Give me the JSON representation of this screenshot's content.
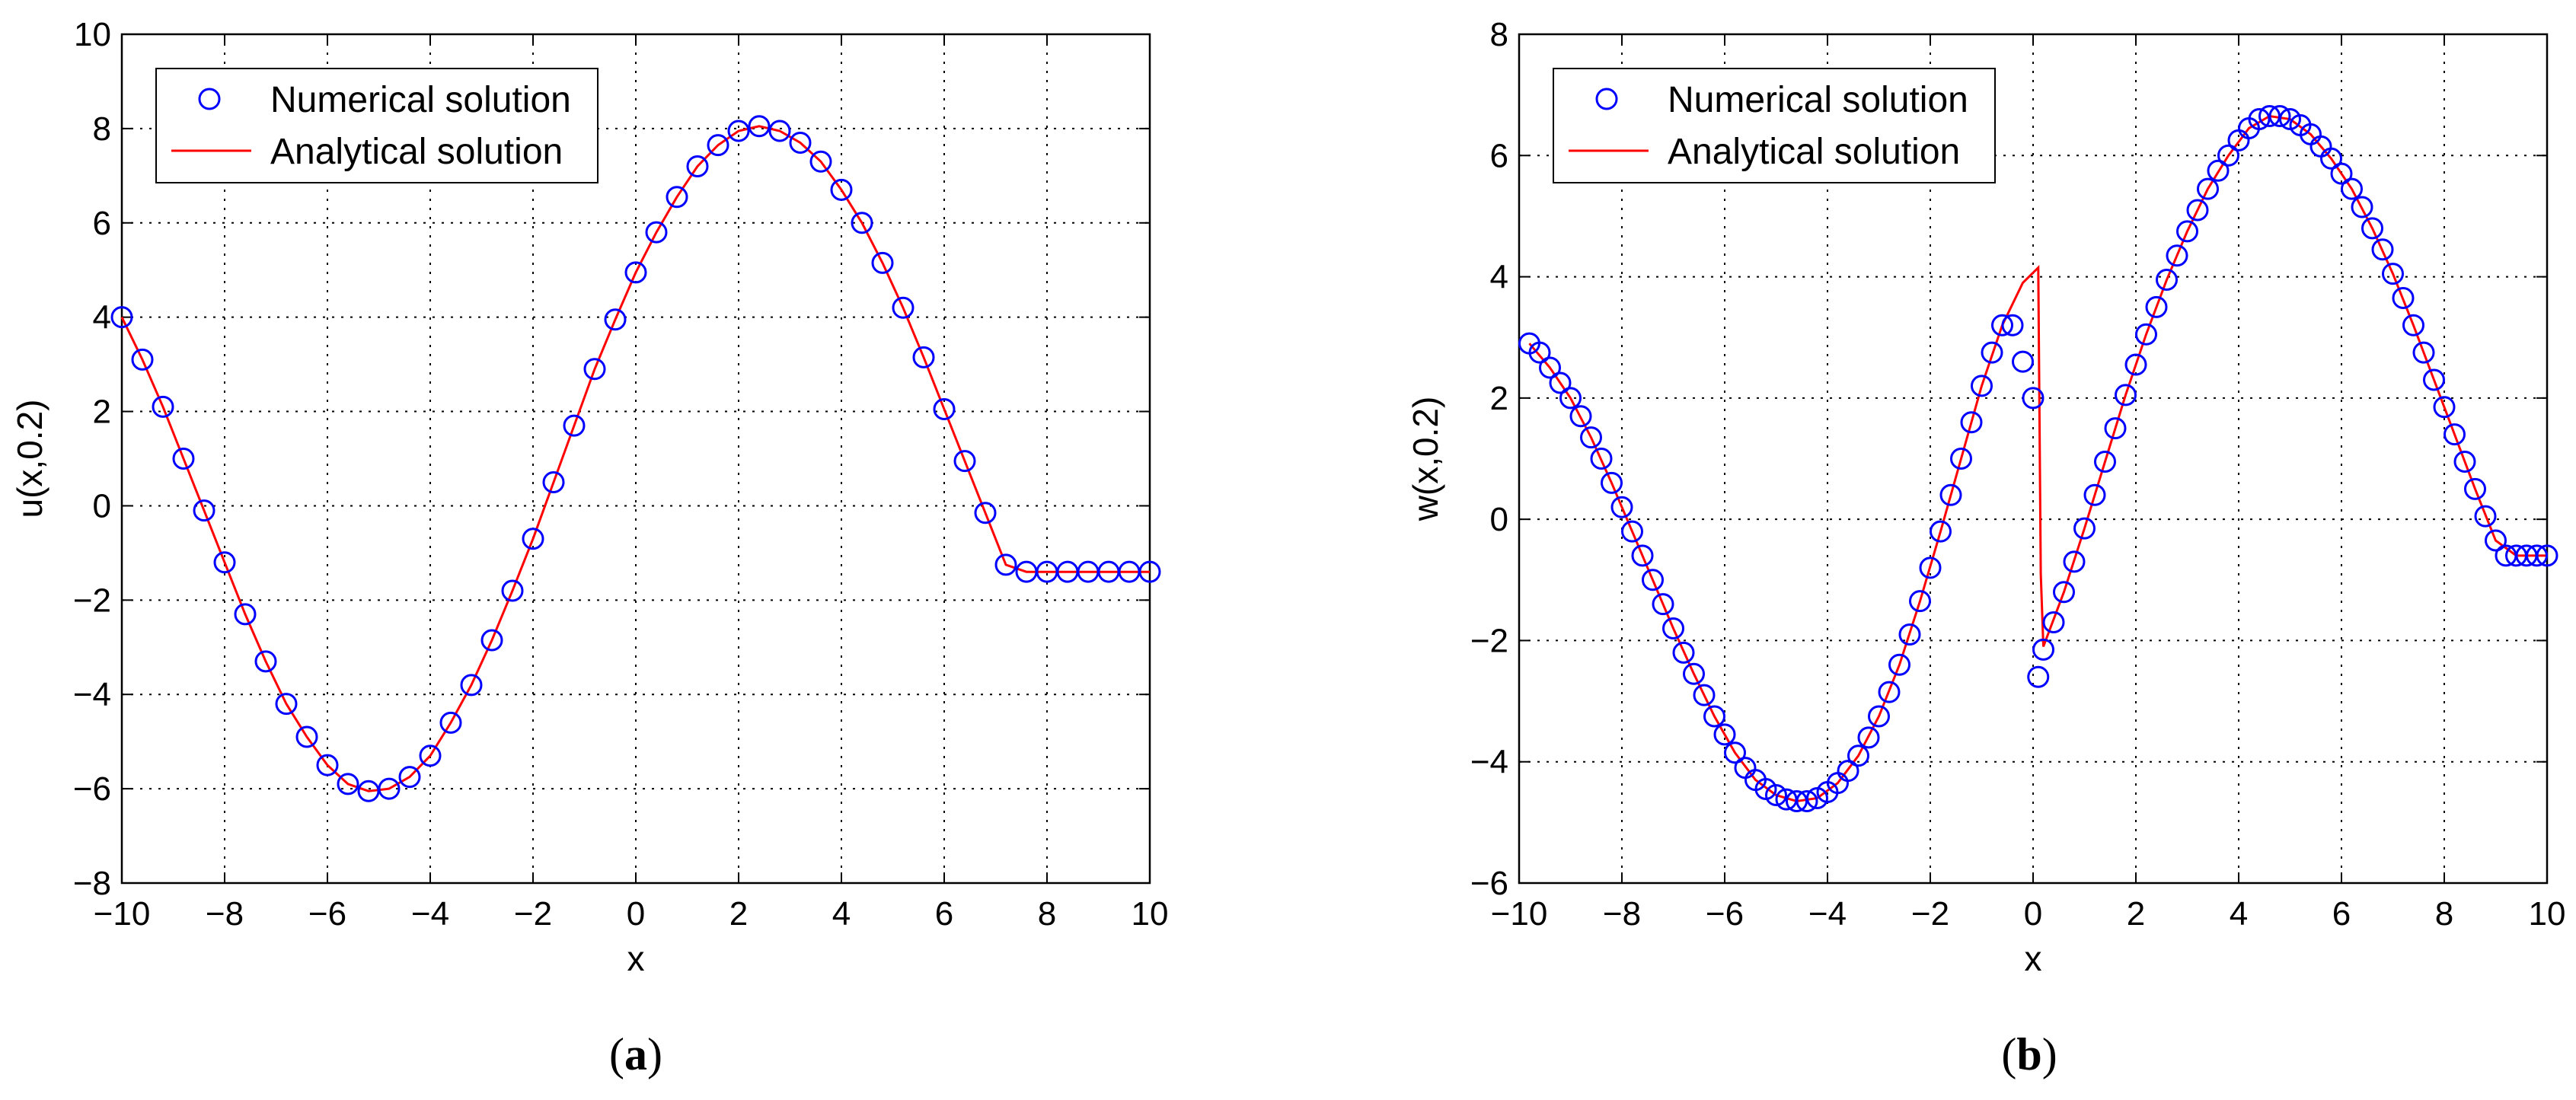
{
  "chart_data": [
    {
      "type": "line",
      "caption": "a",
      "xlabel": "x",
      "ylabel": "u(x,0.2)",
      "xlim": [
        -10,
        10
      ],
      "ylim": [
        -8,
        10
      ],
      "xticks": [
        -10,
        -8,
        -6,
        -4,
        -2,
        0,
        2,
        4,
        6,
        8,
        10
      ],
      "yticks": [
        -8,
        -6,
        -4,
        -2,
        0,
        2,
        4,
        6,
        8,
        10
      ],
      "grid": true,
      "legend_position": "top-left",
      "colors": {
        "numerical": "#0000ff",
        "analytical": "#ff0000"
      },
      "series": [
        {
          "name": "Numerical solution",
          "marker": "circle",
          "x": [
            -10.0,
            -9.6,
            -9.2,
            -8.8,
            -8.4,
            -8.0,
            -7.6,
            -7.2,
            -6.8,
            -6.4,
            -6.0,
            -5.6,
            -5.2,
            -4.8,
            -4.4,
            -4.0,
            -3.6,
            -3.2,
            -2.8,
            -2.4,
            -2.0,
            -1.6,
            -1.2,
            -0.8,
            -0.4,
            0.0,
            0.4,
            0.8,
            1.2,
            1.6,
            2.0,
            2.4,
            2.8,
            3.2,
            3.6,
            4.0,
            4.4,
            4.8,
            5.2,
            5.6,
            6.0,
            6.4,
            6.8,
            7.2,
            7.6,
            8.0,
            8.4,
            8.8,
            9.2,
            9.6,
            10.0
          ],
          "y": [
            4.0,
            3.1,
            2.1,
            1.0,
            -0.1,
            -1.2,
            -2.3,
            -3.3,
            -4.2,
            -4.9,
            -5.5,
            -5.9,
            -6.05,
            -6.0,
            -5.75,
            -5.3,
            -4.6,
            -3.8,
            -2.85,
            -1.8,
            -0.7,
            0.5,
            1.7,
            2.9,
            3.95,
            4.95,
            5.8,
            6.55,
            7.2,
            7.65,
            7.95,
            8.05,
            7.95,
            7.7,
            7.3,
            6.7,
            6.0,
            5.15,
            4.2,
            3.15,
            2.05,
            0.95,
            -0.15,
            -1.25,
            -1.4,
            -1.4,
            -1.4,
            -1.4,
            -1.4,
            -1.4,
            -1.4
          ]
        },
        {
          "name": "Analytical solution",
          "marker": "line",
          "x": [
            -10.0,
            -9.6,
            -9.2,
            -8.8,
            -8.4,
            -8.0,
            -7.6,
            -7.2,
            -6.8,
            -6.4,
            -6.0,
            -5.6,
            -5.2,
            -4.8,
            -4.4,
            -4.0,
            -3.6,
            -3.2,
            -2.8,
            -2.4,
            -2.0,
            -1.6,
            -1.2,
            -0.8,
            -0.4,
            0.0,
            0.4,
            0.8,
            1.2,
            1.6,
            2.0,
            2.4,
            2.8,
            3.2,
            3.6,
            4.0,
            4.4,
            4.8,
            5.2,
            5.6,
            6.0,
            6.4,
            6.8,
            7.2,
            7.6,
            8.0,
            8.4,
            8.8,
            9.2,
            9.6,
            10.0
          ],
          "y": [
            4.0,
            3.1,
            2.1,
            1.0,
            -0.1,
            -1.2,
            -2.3,
            -3.3,
            -4.2,
            -4.9,
            -5.5,
            -5.9,
            -6.05,
            -6.0,
            -5.75,
            -5.3,
            -4.6,
            -3.8,
            -2.85,
            -1.8,
            -0.7,
            0.5,
            1.7,
            2.9,
            3.95,
            4.95,
            5.8,
            6.55,
            7.2,
            7.65,
            7.95,
            8.05,
            7.95,
            7.7,
            7.3,
            6.7,
            6.0,
            5.15,
            4.2,
            3.15,
            2.05,
            0.95,
            -0.15,
            -1.25,
            -1.4,
            -1.4,
            -1.4,
            -1.4,
            -1.4,
            -1.4,
            -1.4
          ]
        }
      ]
    },
    {
      "type": "line",
      "caption": "b",
      "xlabel": "x",
      "ylabel": "w(x,0.2)",
      "xlim": [
        -10,
        10
      ],
      "ylim": [
        -6,
        8
      ],
      "xticks": [
        -10,
        -8,
        -6,
        -4,
        -2,
        0,
        2,
        4,
        6,
        8,
        10
      ],
      "yticks": [
        -6,
        -4,
        -2,
        0,
        2,
        4,
        6,
        8
      ],
      "grid": true,
      "legend_position": "top-left",
      "colors": {
        "numerical": "#0000ff",
        "analytical": "#ff0000"
      },
      "series": [
        {
          "name": "Numerical solution",
          "marker": "circle",
          "x": [
            -9.8,
            -9.6,
            -9.4,
            -9.2,
            -9.0,
            -8.8,
            -8.6,
            -8.4,
            -8.2,
            -8.0,
            -7.8,
            -7.6,
            -7.4,
            -7.2,
            -7.0,
            -6.8,
            -6.6,
            -6.4,
            -6.2,
            -6.0,
            -5.8,
            -5.6,
            -5.4,
            -5.2,
            -5.0,
            -4.8,
            -4.6,
            -4.4,
            -4.2,
            -4.0,
            -3.8,
            -3.6,
            -3.4,
            -3.2,
            -3.0,
            -2.8,
            -2.6,
            -2.4,
            -2.2,
            -2.0,
            -1.8,
            -1.6,
            -1.4,
            -1.2,
            -1.0,
            -0.8,
            -0.6,
            -0.4,
            -0.2,
            0.0,
            0.1,
            0.2,
            0.4,
            0.6,
            0.8,
            1.0,
            1.2,
            1.4,
            1.6,
            1.8,
            2.0,
            2.2,
            2.4,
            2.6,
            2.8,
            3.0,
            3.2,
            3.4,
            3.6,
            3.8,
            4.0,
            4.2,
            4.4,
            4.6,
            4.8,
            5.0,
            5.2,
            5.4,
            5.6,
            5.8,
            6.0,
            6.2,
            6.4,
            6.6,
            6.8,
            7.0,
            7.2,
            7.4,
            7.6,
            7.8,
            8.0,
            8.2,
            8.4,
            8.6,
            8.8,
            9.0,
            9.2,
            9.4,
            9.6,
            9.8,
            10.0
          ],
          "y": [
            2.9,
            2.75,
            2.5,
            2.25,
            2.0,
            1.7,
            1.35,
            1.0,
            0.6,
            0.2,
            -0.2,
            -0.6,
            -1.0,
            -1.4,
            -1.8,
            -2.2,
            -2.55,
            -2.9,
            -3.25,
            -3.55,
            -3.85,
            -4.1,
            -4.3,
            -4.45,
            -4.55,
            -4.62,
            -4.65,
            -4.65,
            -4.6,
            -4.5,
            -4.35,
            -4.15,
            -3.9,
            -3.6,
            -3.25,
            -2.85,
            -2.4,
            -1.9,
            -1.35,
            -0.8,
            -0.2,
            0.4,
            1.0,
            1.6,
            2.2,
            2.75,
            3.2,
            3.2,
            2.6,
            2.0,
            -2.6,
            -2.15,
            -1.7,
            -1.2,
            -0.7,
            -0.15,
            0.4,
            0.95,
            1.5,
            2.05,
            2.55,
            3.05,
            3.5,
            3.95,
            4.35,
            4.75,
            5.1,
            5.45,
            5.75,
            6.0,
            6.25,
            6.45,
            6.6,
            6.65,
            6.65,
            6.6,
            6.5,
            6.35,
            6.15,
            5.95,
            5.7,
            5.45,
            5.15,
            4.8,
            4.45,
            4.05,
            3.65,
            3.2,
            2.75,
            2.3,
            1.85,
            1.4,
            0.95,
            0.5,
            0.05,
            -0.35,
            -0.6,
            -0.6,
            -0.6,
            -0.6,
            -0.6
          ]
        },
        {
          "name": "Analytical solution",
          "marker": "line",
          "x": [
            -9.8,
            -9.4,
            -9.0,
            -8.6,
            -8.2,
            -7.8,
            -7.4,
            -7.0,
            -6.6,
            -6.2,
            -5.8,
            -5.4,
            -5.0,
            -4.6,
            -4.2,
            -3.8,
            -3.4,
            -3.0,
            -2.6,
            -2.2,
            -1.8,
            -1.4,
            -1.0,
            -0.6,
            -0.2,
            0.1,
            0.15,
            0.2,
            0.6,
            1.0,
            1.4,
            1.8,
            2.2,
            2.6,
            3.0,
            3.4,
            3.8,
            4.2,
            4.6,
            5.0,
            5.4,
            5.8,
            6.2,
            6.6,
            7.0,
            7.4,
            7.8,
            8.2,
            8.6,
            9.0,
            9.4,
            9.8,
            10.0
          ],
          "y": [
            2.9,
            2.5,
            2.0,
            1.35,
            0.6,
            -0.2,
            -1.0,
            -1.8,
            -2.55,
            -3.25,
            -3.85,
            -4.3,
            -4.55,
            -4.65,
            -4.6,
            -4.35,
            -3.9,
            -3.25,
            -2.4,
            -1.35,
            -0.2,
            1.0,
            2.2,
            3.2,
            3.9,
            4.15,
            -0.9,
            -2.1,
            -1.2,
            -0.15,
            0.95,
            2.05,
            3.05,
            3.95,
            4.75,
            5.45,
            6.0,
            6.45,
            6.65,
            6.6,
            6.35,
            5.95,
            5.45,
            4.8,
            4.05,
            3.2,
            2.3,
            1.4,
            0.5,
            -0.35,
            -0.6,
            -0.6,
            -0.6
          ]
        }
      ]
    }
  ]
}
